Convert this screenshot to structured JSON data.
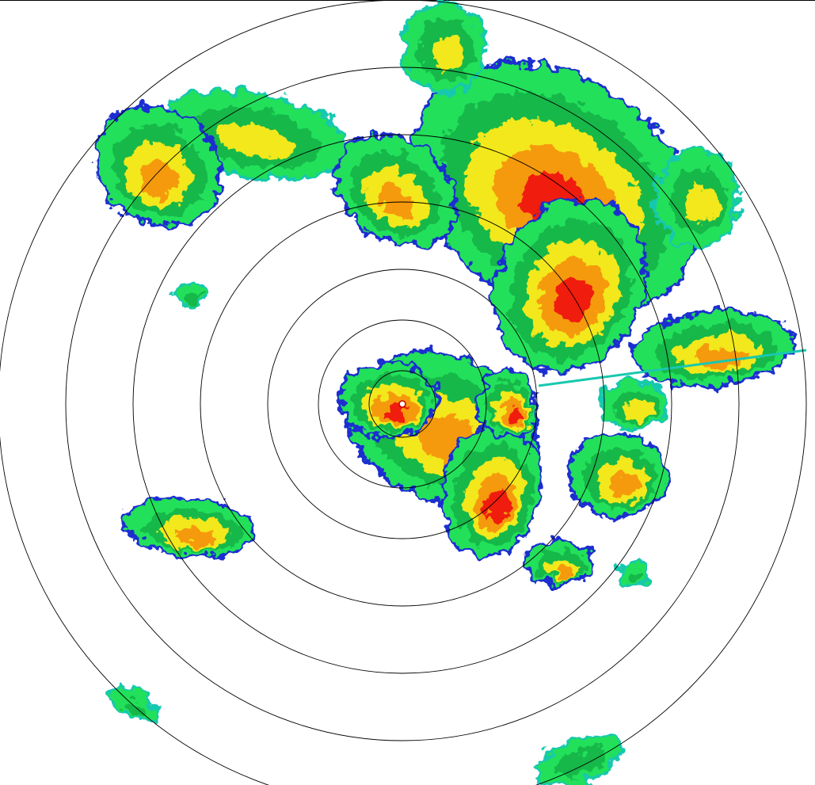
{
  "display": {
    "type": "radar-ppi",
    "range_ring_count": 7,
    "site_marker": "radar-site-dot"
  },
  "palette": {
    "background": "#ffffff",
    "ring": "#000000",
    "very_light": "#1a2fd0",
    "light": "#19c8b0",
    "moderate_low": "#14b84a",
    "moderate": "#22e05a",
    "heavy_low": "#f2e81a",
    "heavy": "#f59a10",
    "very_heavy": "#f01a0a",
    "extreme": "#c80a0a"
  }
}
